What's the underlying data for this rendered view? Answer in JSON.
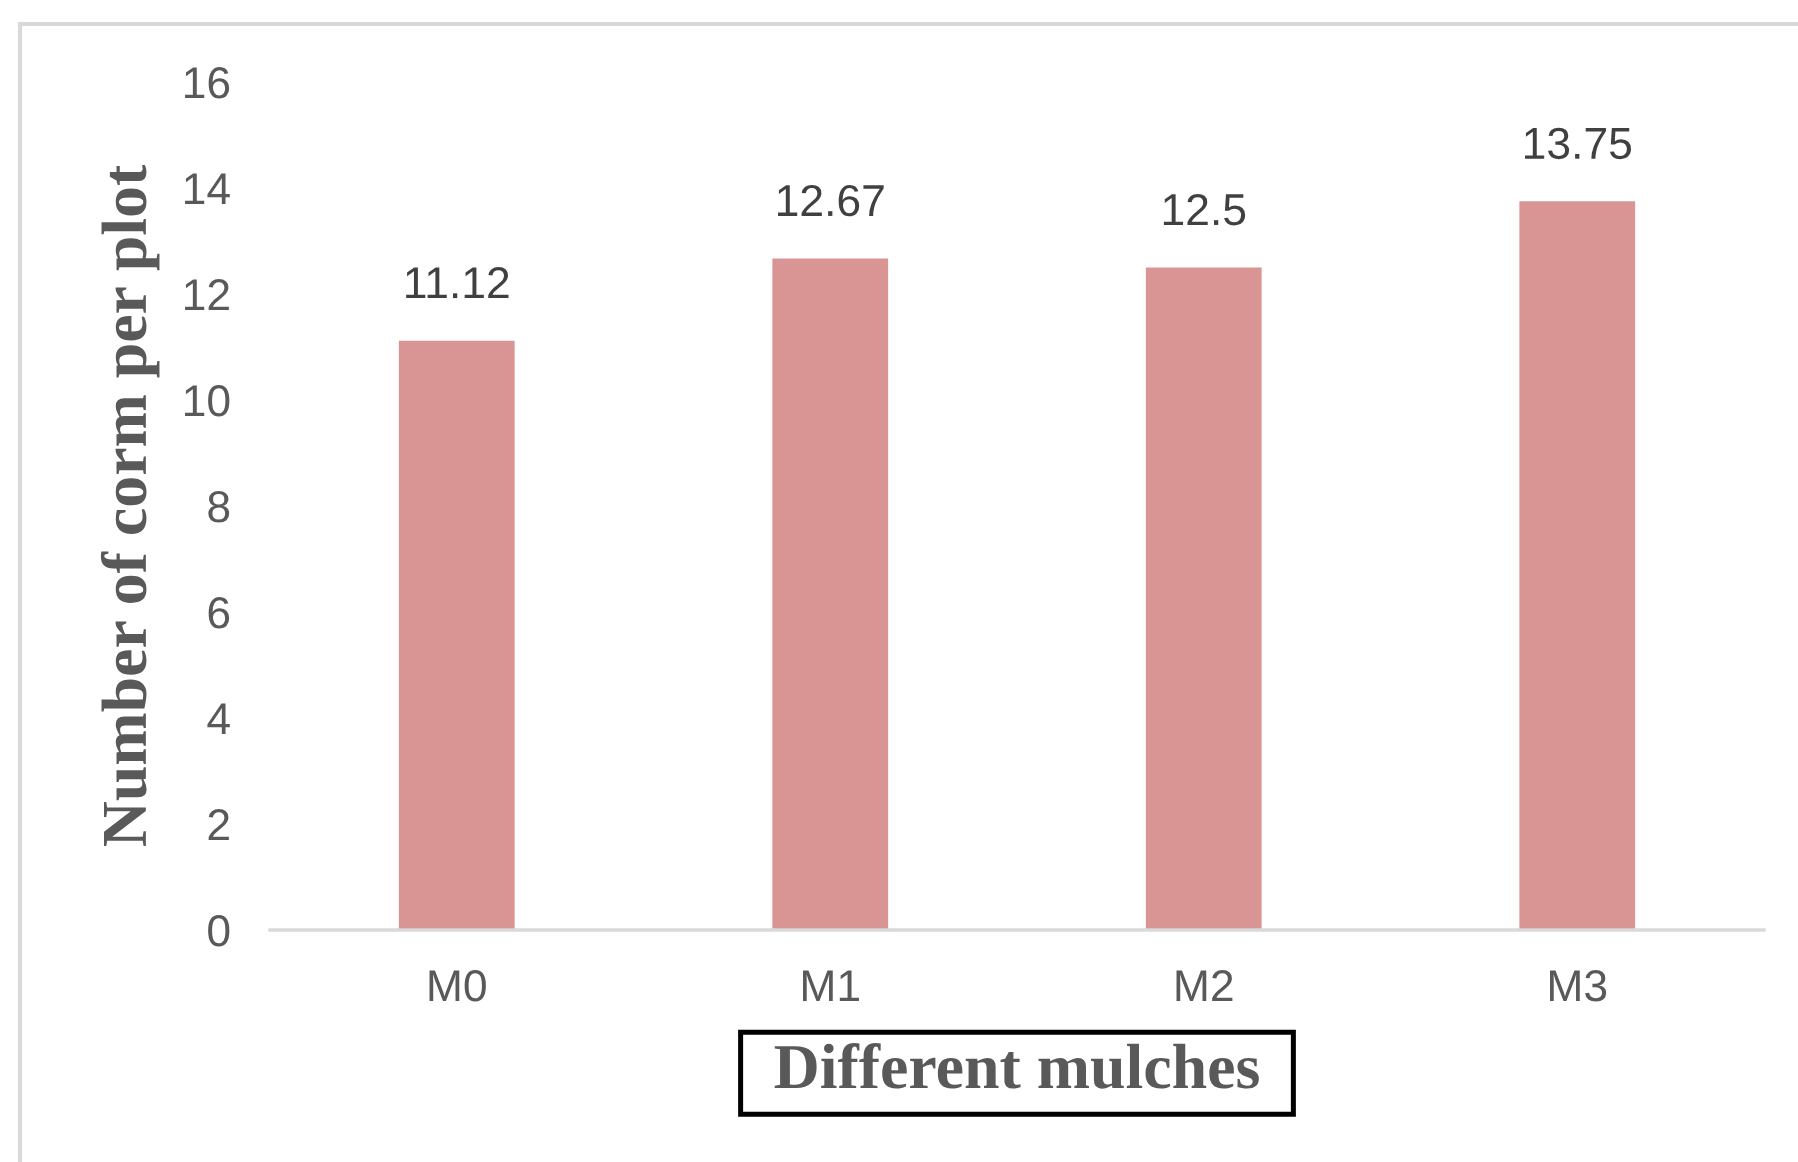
{
  "chart_data": {
    "type": "bar",
    "categories": [
      "M0",
      "M1",
      "M2",
      "M3"
    ],
    "values": [
      11.12,
      12.67,
      12.5,
      13.75
    ],
    "color": "#d99594",
    "xlabel": "Different mulches",
    "ylabel": "Number of corm per plot",
    "ylim": [
      0,
      16
    ],
    "yticks": [
      0,
      2,
      4,
      6,
      8,
      10,
      12,
      14,
      16
    ],
    "data_labels": true,
    "grid": false,
    "legend": false
  }
}
